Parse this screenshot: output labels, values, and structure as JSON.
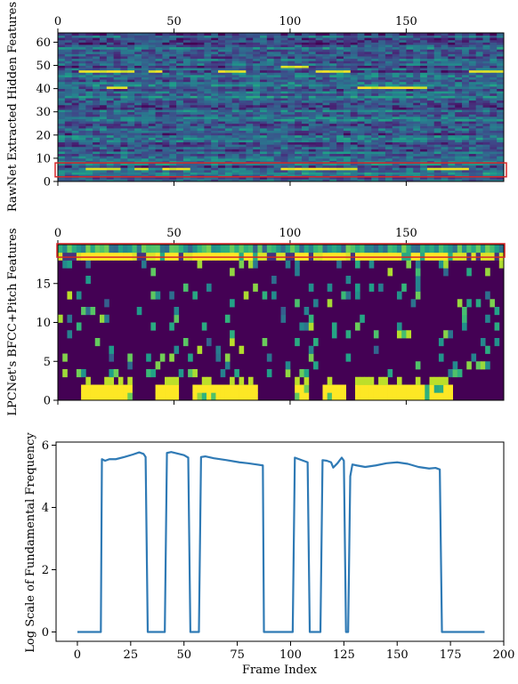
{
  "chart_data": [
    {
      "type": "heatmap",
      "title": "",
      "xlabel": "",
      "ylabel": "RawNet Extracted Hidden Features",
      "x_axis_position": "top",
      "xlim": [
        0,
        192
      ],
      "ylim": [
        0,
        64
      ],
      "x_ticks": [
        "0",
        "50",
        "100",
        "150"
      ],
      "y_ticks": [
        "0",
        "10",
        "20",
        "30",
        "40",
        "50",
        "60"
      ],
      "colormap": "viridis",
      "highlight_box": {
        "color": "#d62728",
        "y_range": [
          2,
          8
        ],
        "x_range": [
          0,
          192
        ]
      },
      "bright_rows": [
        {
          "row": 47,
          "x_ranges": [
            [
              10,
              32
            ],
            [
              38,
              46
            ],
            [
              68,
              80
            ],
            [
              110,
              125
            ],
            [
              178,
              192
            ]
          ]
        },
        {
          "row": 40,
          "x_ranges": [
            [
              20,
              30
            ],
            [
              128,
              158
            ]
          ]
        },
        {
          "row": 5,
          "x_ranges": [
            [
              12,
              26
            ],
            [
              32,
              40
            ],
            [
              45,
              58
            ],
            [
              95,
              130
            ],
            [
              160,
              178
            ]
          ]
        },
        {
          "row": 49,
          "x_ranges": [
            [
              95,
              108
            ]
          ]
        }
      ]
    },
    {
      "type": "heatmap",
      "title": "",
      "xlabel": "",
      "ylabel": "LPCNet's BFCC+Pitch Features",
      "x_axis_position": "top",
      "xlim": [
        0,
        192
      ],
      "ylim": [
        0,
        20
      ],
      "x_ticks": [
        "0",
        "50",
        "100",
        "150"
      ],
      "y_ticks": [
        "0",
        "5",
        "10",
        "15"
      ],
      "colormap": "viridis",
      "highlight_box": {
        "color": "#d62728",
        "y_range": [
          18.5,
          20
        ],
        "x_range": [
          0,
          192
        ]
      },
      "voiced_segments": [
        [
          11,
          32
        ],
        [
          42,
          53
        ],
        [
          58,
          87
        ],
        [
          102,
          108
        ],
        [
          115,
          125
        ],
        [
          128,
          171
        ]
      ]
    },
    {
      "type": "line",
      "title": "",
      "xlabel": "Frame Index",
      "ylabel": "Log Scale of Fundamental Frequency",
      "xlim": [
        -10,
        200
      ],
      "ylim": [
        -0.3,
        6.1
      ],
      "x_ticks": [
        "0",
        "25",
        "50",
        "75",
        "100",
        "125",
        "150",
        "175",
        "200"
      ],
      "y_ticks": [
        "0",
        "2",
        "4",
        "6"
      ],
      "series": [
        {
          "color": "#2f7ab5",
          "points": [
            [
              0,
              0
            ],
            [
              11,
              0
            ],
            [
              11.5,
              5.55
            ],
            [
              13,
              5.5
            ],
            [
              15,
              5.55
            ],
            [
              18,
              5.55
            ],
            [
              22,
              5.62
            ],
            [
              26,
              5.7
            ],
            [
              29,
              5.77
            ],
            [
              31,
              5.72
            ],
            [
              32,
              5.62
            ],
            [
              33,
              0
            ],
            [
              41,
              0
            ],
            [
              42,
              5.75
            ],
            [
              44,
              5.78
            ],
            [
              47,
              5.73
            ],
            [
              50,
              5.68
            ],
            [
              52,
              5.6
            ],
            [
              53,
              0
            ],
            [
              57,
              0
            ],
            [
              58,
              5.62
            ],
            [
              60,
              5.64
            ],
            [
              64,
              5.58
            ],
            [
              70,
              5.52
            ],
            [
              76,
              5.45
            ],
            [
              80,
              5.42
            ],
            [
              84,
              5.38
            ],
            [
              87,
              5.35
            ],
            [
              87.5,
              0
            ],
            [
              101,
              0
            ],
            [
              102,
              5.6
            ],
            [
              104,
              5.55
            ],
            [
              106,
              5.5
            ],
            [
              108,
              5.45
            ],
            [
              109,
              0
            ],
            [
              114,
              0
            ],
            [
              115,
              5.52
            ],
            [
              117,
              5.5
            ],
            [
              119,
              5.45
            ],
            [
              120,
              5.28
            ],
            [
              122,
              5.42
            ],
            [
              124,
              5.6
            ],
            [
              125,
              5.5
            ],
            [
              126,
              0
            ],
            [
              127,
              0
            ],
            [
              128,
              5.0
            ],
            [
              129,
              5.38
            ],
            [
              131,
              5.35
            ],
            [
              135,
              5.3
            ],
            [
              140,
              5.35
            ],
            [
              145,
              5.42
            ],
            [
              150,
              5.45
            ],
            [
              155,
              5.4
            ],
            [
              160,
              5.3
            ],
            [
              165,
              5.25
            ],
            [
              168,
              5.27
            ],
            [
              170,
              5.22
            ],
            [
              171,
              0
            ],
            [
              191,
              0
            ]
          ]
        }
      ]
    }
  ]
}
